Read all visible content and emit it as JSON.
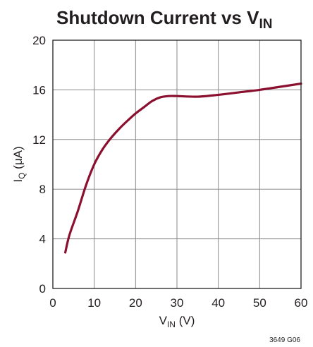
{
  "chart_data": {
    "type": "line",
    "title": {
      "main": "Shutdown Current vs V",
      "sub": "IN"
    },
    "xlabel": {
      "main": "V",
      "sub": "IN",
      "unit": " (V)"
    },
    "ylabel": {
      "main": "I",
      "sub": "Q",
      "unit": " (μA)"
    },
    "xlim": [
      0,
      60
    ],
    "ylim": [
      0,
      20
    ],
    "xticks": [
      "0",
      "10",
      "20",
      "30",
      "40",
      "50",
      "60"
    ],
    "yticks": [
      "0",
      "4",
      "8",
      "12",
      "16",
      "20"
    ],
    "grid": true,
    "series": [
      {
        "color": "#8b0f2e",
        "x": [
          3,
          4,
          6,
          8,
          10,
          12,
          14,
          16,
          18,
          20,
          22,
          24,
          26,
          28,
          30,
          35,
          40,
          45,
          50,
          55,
          60
        ],
        "y": [
          2.9,
          4.3,
          6.2,
          8.3,
          10.0,
          11.2,
          12.1,
          12.85,
          13.5,
          14.1,
          14.6,
          15.1,
          15.4,
          15.5,
          15.5,
          15.45,
          15.6,
          15.8,
          16.0,
          16.25,
          16.5
        ]
      }
    ],
    "note": "3649 G06"
  }
}
